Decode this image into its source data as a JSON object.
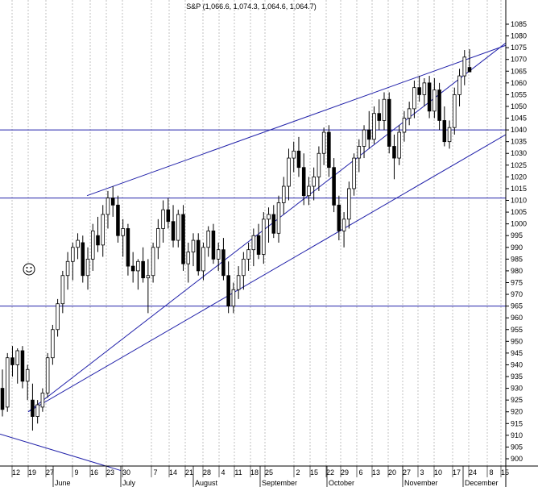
{
  "chart_data": {
    "type": "candlestick",
    "title": "S&P (1,066.6, 1,074.3, 1,064.6, 1,064.7)",
    "xlabel": "",
    "ylabel": "",
    "ylim": [
      895,
      1090
    ],
    "yticks": [
      900,
      905,
      910,
      915,
      920,
      925,
      930,
      935,
      940,
      945,
      950,
      955,
      960,
      965,
      970,
      975,
      980,
      985,
      990,
      995,
      1000,
      1005,
      1010,
      1015,
      1020,
      1025,
      1030,
      1035,
      1040,
      1045,
      1050,
      1055,
      1060,
      1065,
      1070,
      1075,
      1080,
      1085
    ],
    "x_day_labels": [
      "12",
      "19",
      "27",
      "9",
      "16",
      "23",
      "30",
      "7",
      "14",
      "21",
      "28",
      "4",
      "11",
      "18",
      "25",
      "2",
      "15",
      "22",
      "29",
      "6",
      "13",
      "20",
      "27",
      "3",
      "10",
      "17",
      "24",
      "8",
      "15"
    ],
    "x_month_labels": [
      "June",
      "July",
      "August",
      "September",
      "October",
      "November",
      "December"
    ],
    "grid": true,
    "horizontal_lines": [
      1040,
      1011,
      965
    ],
    "series": [
      {
        "type": "ohlc",
        "values": [
          [
            930,
            938,
            918,
            921
          ],
          [
            922,
            945,
            920,
            943
          ],
          [
            943,
            948,
            935,
            940
          ],
          [
            940,
            947,
            932,
            946
          ],
          [
            946,
            948,
            930,
            933
          ],
          [
            933,
            940,
            925,
            938
          ],
          [
            925,
            932,
            912,
            918
          ],
          [
            918,
            925,
            915,
            923
          ],
          [
            922,
            930,
            920,
            928
          ],
          [
            928,
            945,
            926,
            943
          ],
          [
            943,
            957,
            940,
            955
          ],
          [
            955,
            968,
            952,
            966
          ],
          [
            966,
            980,
            962,
            978
          ],
          [
            978,
            988,
            972,
            984
          ],
          [
            984,
            992,
            976,
            990
          ],
          [
            990,
            996,
            985,
            993
          ],
          [
            992,
            995,
            975,
            978
          ],
          [
            978,
            990,
            972,
            985
          ],
          [
            985,
            1000,
            980,
            997
          ],
          [
            995,
            1003,
            988,
            991
          ],
          [
            991,
            1008,
            986,
            1004
          ],
          [
            1004,
            1014,
            998,
            1011
          ],
          [
            1011,
            1016,
            1003,
            1008
          ],
          [
            1008,
            1012,
            992,
            995
          ],
          [
            995,
            1002,
            986,
            998
          ],
          [
            998,
            1000,
            978,
            982
          ],
          [
            982,
            988,
            975,
            980
          ],
          [
            980,
            985,
            972,
            984
          ],
          [
            984,
            990,
            975,
            977
          ],
          [
            977,
            985,
            962,
            978
          ],
          [
            978,
            992,
            975,
            990
          ],
          [
            990,
            1002,
            985,
            998
          ],
          [
            998,
            1010,
            992,
            1006
          ],
          [
            1006,
            1011,
            998,
            1001
          ],
          [
            1001,
            1008,
            990,
            993
          ],
          [
            993,
            1006,
            990,
            1004
          ],
          [
            1004,
            1008,
            980,
            983
          ],
          [
            983,
            992,
            975,
            988
          ],
          [
            988,
            996,
            982,
            993
          ],
          [
            993,
            996,
            978,
            980
          ],
          [
            980,
            992,
            976,
            990
          ],
          [
            990,
            999,
            986,
            997
          ],
          [
            997,
            1000,
            983,
            985
          ],
          [
            985,
            992,
            980,
            989
          ],
          [
            989,
            994,
            976,
            978
          ],
          [
            978,
            984,
            962,
            965
          ],
          [
            965,
            975,
            962,
            972
          ],
          [
            972,
            982,
            968,
            978
          ],
          [
            978,
            988,
            972,
            985
          ],
          [
            985,
            992,
            980,
            989
          ],
          [
            989,
            998,
            982,
            995
          ],
          [
            995,
            1000,
            985,
            987
          ],
          [
            987,
            1005,
            983,
            1002
          ],
          [
            1002,
            1007,
            992,
            1004
          ],
          [
            1004,
            1008,
            994,
            996
          ],
          [
            996,
            1012,
            992,
            1009
          ],
          [
            1009,
            1020,
            1004,
            1016
          ],
          [
            1016,
            1032,
            1010,
            1028
          ],
          [
            1028,
            1035,
            1022,
            1031
          ],
          [
            1031,
            1037,
            1020,
            1024
          ],
          [
            1024,
            1030,
            1008,
            1012
          ],
          [
            1012,
            1020,
            1008,
            1016
          ],
          [
            1016,
            1024,
            1010,
            1020
          ],
          [
            1020,
            1033,
            1014,
            1030
          ],
          [
            1030,
            1041,
            1025,
            1039
          ],
          [
            1039,
            1042,
            1020,
            1024
          ],
          [
            1024,
            1028,
            1005,
            1008
          ],
          [
            1008,
            1012,
            993,
            997
          ],
          [
            997,
            1005,
            990,
            1002
          ],
          [
            1002,
            1018,
            998,
            1015
          ],
          [
            1015,
            1030,
            1012,
            1028
          ],
          [
            1028,
            1036,
            1022,
            1033
          ],
          [
            1033,
            1042,
            1028,
            1040
          ],
          [
            1040,
            1048,
            1032,
            1036
          ],
          [
            1036,
            1050,
            1034,
            1047
          ],
          [
            1047,
            1053,
            1040,
            1044
          ],
          [
            1044,
            1056,
            1040,
            1053
          ],
          [
            1053,
            1056,
            1030,
            1033
          ],
          [
            1033,
            1038,
            1019,
            1028
          ],
          [
            1028,
            1042,
            1025,
            1039
          ],
          [
            1039,
            1048,
            1035,
            1045
          ],
          [
            1045,
            1052,
            1042,
            1049
          ],
          [
            1049,
            1061,
            1045,
            1058
          ],
          [
            1058,
            1063,
            1052,
            1055
          ],
          [
            1055,
            1062,
            1050,
            1060
          ],
          [
            1060,
            1063,
            1045,
            1048
          ],
          [
            1048,
            1062,
            1045,
            1057
          ],
          [
            1057,
            1060,
            1040,
            1044
          ],
          [
            1044,
            1050,
            1033,
            1035
          ],
          [
            1035,
            1044,
            1032,
            1041
          ],
          [
            1041,
            1058,
            1038,
            1055
          ],
          [
            1055,
            1066,
            1050,
            1063
          ],
          [
            1063,
            1074,
            1059,
            1071
          ],
          [
            1066.6,
            1074.3,
            1064.6,
            1064.7
          ]
        ]
      }
    ],
    "trendlines": [
      {
        "from": [
          "May 19",
          920
        ],
        "to": [
          "Dec 15",
          1077
        ]
      },
      {
        "from": [
          "May 19",
          920
        ],
        "to": [
          "Dec 15",
          1038
        ]
      },
      {
        "from": [
          "Jun 12",
          1012
        ],
        "to": [
          "Dec 15",
          1076
        ]
      },
      {
        "from": [
          "May 12",
          910
        ],
        "to": [
          "Jul 1",
          895
        ]
      }
    ],
    "annotation": "smiley"
  }
}
